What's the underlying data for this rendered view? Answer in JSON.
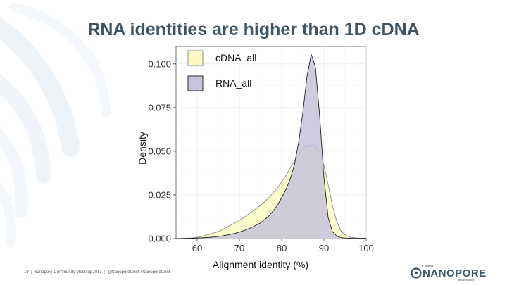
{
  "slide": {
    "title": "RNA identities are higher than 1D cDNA",
    "footer": {
      "page_number": "19",
      "event": "Nanopore Community Meeting 2017",
      "social": "@NanoporeConf #NanoporeConf"
    },
    "logo": {
      "small_text": "Oxford",
      "main_text": "NANOPORE",
      "sub_text": "Technologies"
    },
    "colors": {
      "title": "#3e5566",
      "logo": "#3e5566",
      "swirl": "#e9f0f6"
    }
  },
  "chart_data": {
    "type": "area",
    "title": "",
    "xlabel": "Alignment identity (%)",
    "ylabel": "Density",
    "xlim": [
      55,
      100
    ],
    "ylim": [
      0,
      0.11
    ],
    "xticks": [
      60,
      70,
      80,
      90,
      100
    ],
    "yticks": [
      0.0,
      0.025,
      0.05,
      0.075,
      0.1
    ],
    "ytick_labels": [
      "0.000",
      "0.025",
      "0.050",
      "0.075",
      "0.100"
    ],
    "grid": true,
    "legend_position": "top-left",
    "series": [
      {
        "name": "cDNA_all",
        "color": "#fafac2",
        "x": [
          55,
          57,
          59,
          61,
          63,
          65,
          67,
          69,
          71,
          73,
          75,
          77,
          79,
          81,
          83,
          85,
          86,
          87,
          88,
          89,
          90,
          91,
          92,
          93,
          94,
          95,
          96,
          97,
          98,
          99,
          100
        ],
        "y": [
          0.0,
          0.0001,
          0.0004,
          0.0012,
          0.0025,
          0.004,
          0.0065,
          0.009,
          0.012,
          0.0155,
          0.019,
          0.0235,
          0.029,
          0.036,
          0.0445,
          0.0515,
          0.0533,
          0.0535,
          0.0525,
          0.049,
          0.042,
          0.031,
          0.019,
          0.01,
          0.0045,
          0.002,
          0.001,
          0.0005,
          0.0003,
          0.0002,
          0.0002
        ]
      },
      {
        "name": "RNA_all",
        "color": "#c6c3da",
        "x": [
          55,
          57,
          59,
          61,
          63,
          65,
          67,
          69,
          71,
          73,
          75,
          77,
          79,
          81,
          82,
          83,
          84,
          85,
          86,
          87,
          88,
          89,
          90,
          91,
          92,
          93,
          94,
          95,
          96,
          97,
          98,
          99,
          100
        ],
        "y": [
          0.0,
          0.0001,
          0.0002,
          0.0004,
          0.0007,
          0.0012,
          0.002,
          0.003,
          0.0045,
          0.0065,
          0.009,
          0.013,
          0.019,
          0.028,
          0.034,
          0.042,
          0.055,
          0.072,
          0.093,
          0.1055,
          0.098,
          0.07,
          0.035,
          0.012,
          0.004,
          0.0015,
          0.0006,
          0.0003,
          0.0002,
          0.0001,
          0.0001,
          0.0001,
          0.0001
        ]
      }
    ]
  }
}
